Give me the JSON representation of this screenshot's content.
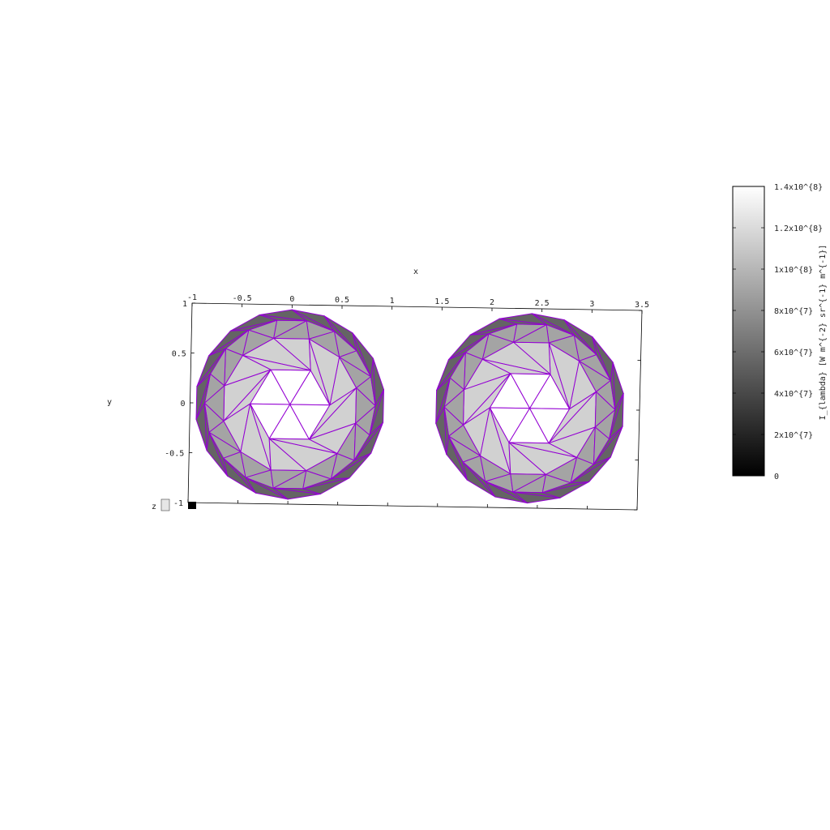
{
  "chart_data": {
    "type": "heatmap",
    "subtype": "3d-faceted-surface",
    "title": "",
    "xlabel": "x",
    "ylabel": "y",
    "zlabel": "z",
    "xlim": [
      -1,
      3.5
    ],
    "ylim": [
      -1,
      1
    ],
    "xticks": [
      "-1",
      "-0.5",
      "0",
      "0.5",
      "1",
      "1.5",
      "2",
      "2.5",
      "3",
      "3.5"
    ],
    "yticks": [
      "1",
      "0.5",
      "0",
      "-0.5",
      "-1"
    ],
    "colorbar": {
      "label": "I_{lambda} [W m^{-2} sr^{-1} m^{-1}]",
      "range": [
        0,
        140000000
      ],
      "ticks": [
        "0",
        "2x10^{7}",
        "4x10^{7}",
        "6x10^{7}",
        "8x10^{7}",
        "1x10^{8}",
        "1.2x10^{8}",
        "1.4x10^{8}"
      ],
      "colormap": "grayscale",
      "low_color": "#000000",
      "high_color": "#ffffff"
    },
    "edge_color": "#9400d3",
    "series": [
      {
        "center": [
          0,
          0
        ],
        "radius": 0.95
      },
      {
        "center": [
          2.4,
          0
        ],
        "radius": 0.95
      }
    ],
    "face_intensity_levels": [
      140000000,
      115000000,
      90000000,
      55000000
    ],
    "grid": false
  }
}
